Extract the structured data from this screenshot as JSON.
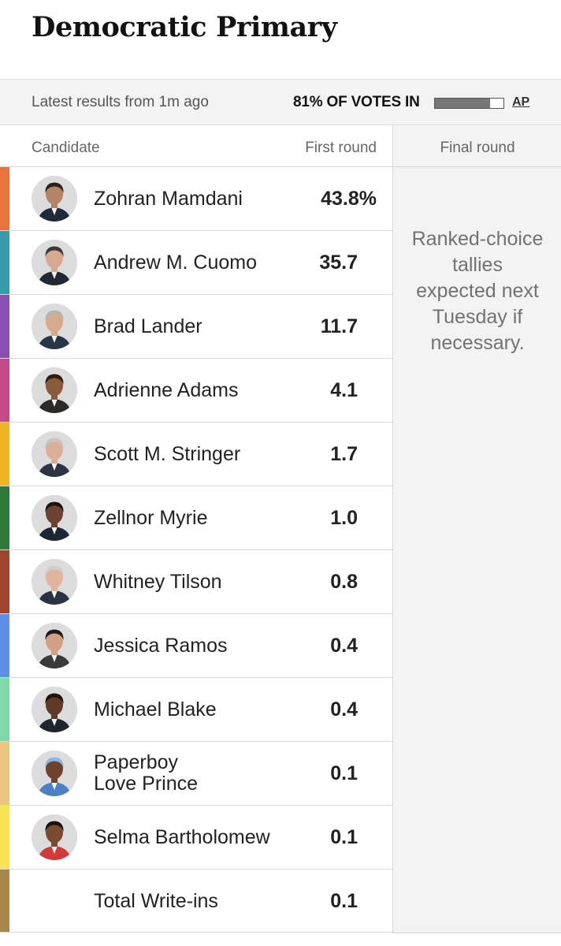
{
  "title": "Democratic Primary",
  "status": {
    "latest": "Latest results from 1m ago",
    "votes_in": "81% OF VOTES IN",
    "votes_in_fraction": 0.81,
    "source": "AP"
  },
  "columns": {
    "candidate": "Candidate",
    "first_round": "First round",
    "final_round": "Final round"
  },
  "final_note": "Ranked-choice tallies expected next Tuesday if necessary.",
  "candidates": [
    {
      "name": "Zohran Mamdani",
      "first_round": "43.8%",
      "color": "#e8743b",
      "skin": "#b58466",
      "hair": "#2a211c",
      "suit": "#1f2a3a"
    },
    {
      "name": "Andrew M. Cuomo",
      "first_round": "35.7",
      "color": "#3b9aa8",
      "skin": "#d6a990",
      "hair": "#3a3a3a",
      "suit": "#222831"
    },
    {
      "name": "Brad Lander",
      "first_round": "11.7",
      "color": "#8b4fb3",
      "skin": "#d7a98d",
      "hair": "#b9b3ad",
      "suit": "#283447"
    },
    {
      "name": "Adrienne Adams",
      "first_round": "4.1",
      "color": "#c64a8a",
      "skin": "#8a5a3c",
      "hair": "#2b1d16",
      "suit": "#2a2a2a"
    },
    {
      "name": "Scott M. Stringer",
      "first_round": "1.7",
      "color": "#f0b323",
      "skin": "#dcae95",
      "hair": "#c9c4bf",
      "suit": "#2c3444"
    },
    {
      "name": "Zellnor Myrie",
      "first_round": "1.0",
      "color": "#2f7a3a",
      "skin": "#6b4330",
      "hair": "#1c1410",
      "suit": "#1e2533"
    },
    {
      "name": "Whitney Tilson",
      "first_round": "0.8",
      "color": "#a0442e",
      "skin": "#e0b39c",
      "hair": "#d2cfcb",
      "suit": "#2b3342"
    },
    {
      "name": "Jessica Ramos",
      "first_round": "0.4",
      "color": "#5e8fe8",
      "skin": "#d3a085",
      "hair": "#1f1915",
      "suit": "#3a3a3a"
    },
    {
      "name": "Michael Blake",
      "first_round": "0.4",
      "color": "#7fd9a9",
      "skin": "#5e3b29",
      "hair": "#1b1410",
      "suit": "#20252e"
    },
    {
      "name": "Paperboy\nLove Prince",
      "first_round": "0.1",
      "color": "#e9c57d",
      "skin": "#6d432d",
      "hair": "#8fb6e0",
      "suit": "#4c7fc4"
    },
    {
      "name": "Selma Bartholomew",
      "first_round": "0.1",
      "color": "#f7e450",
      "skin": "#7a4a32",
      "hair": "#1a1210",
      "suit": "#d23a3a"
    },
    {
      "name": "Total Write-ins",
      "first_round": "0.1",
      "color": "#a8874a",
      "no_avatar": true
    }
  ]
}
